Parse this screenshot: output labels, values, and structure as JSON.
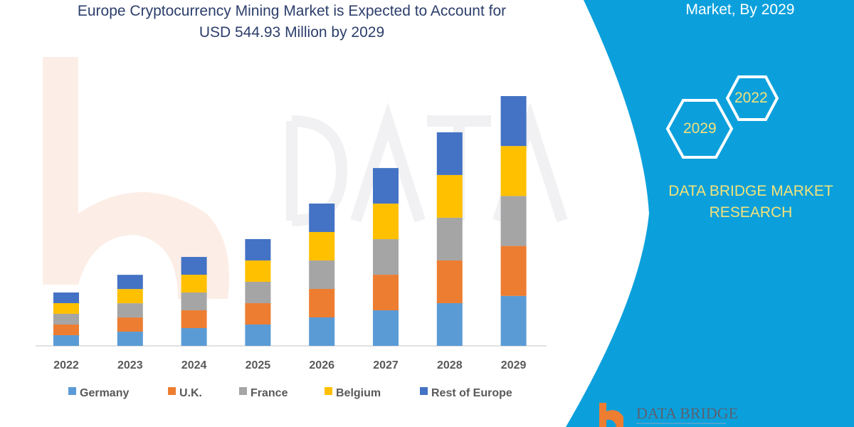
{
  "header": {
    "title_line1": "Europe Cryptocurrency Mining Market is Expected to Account for",
    "title_line2": "USD 544.93 Million by 2029"
  },
  "side_panel": {
    "title": "Market, By 2029",
    "hex_years": [
      "2022",
      "2029"
    ],
    "brand_line1": "DATA BRIDGE MARKET",
    "brand_line2": "RESEARCH",
    "logo_text": "DATA BRIDGE",
    "panel_color": "#0ba0dc",
    "accent_text_color": "#f3e27a"
  },
  "chart_data": {
    "type": "bar",
    "stacked": true,
    "title": "Europe Cryptocurrency Mining Market is Expected to Account for USD 544.93 Million by 2029",
    "xlabel": "",
    "ylabel": "",
    "ylim": [
      0,
      560
    ],
    "grid": false,
    "legend_position": "bottom",
    "categories": [
      "2022",
      "2023",
      "2024",
      "2025",
      "2026",
      "2027",
      "2028",
      "2029"
    ],
    "series": [
      {
        "name": "Germany",
        "color": "#5b9bd5",
        "values": [
          23.3,
          31.0,
          38.8,
          46.6,
          62.1,
          77.6,
          93.2,
          109.0
        ]
      },
      {
        "name": "U.K.",
        "color": "#ed7d31",
        "values": [
          23.3,
          31.0,
          38.8,
          46.6,
          62.1,
          77.6,
          93.2,
          109.0
        ]
      },
      {
        "name": "France",
        "color": "#a5a5a5",
        "values": [
          23.3,
          31.0,
          38.8,
          46.6,
          62.1,
          77.6,
          93.2,
          109.0
        ]
      },
      {
        "name": "Belgium",
        "color": "#ffc000",
        "values": [
          23.3,
          31.0,
          38.8,
          46.6,
          62.1,
          77.6,
          93.2,
          109.0
        ]
      },
      {
        "name": "Rest of Europe",
        "color": "#4472c4",
        "values": [
          23.3,
          31.0,
          38.8,
          46.6,
          62.1,
          77.6,
          93.2,
          109.0
        ]
      }
    ]
  }
}
